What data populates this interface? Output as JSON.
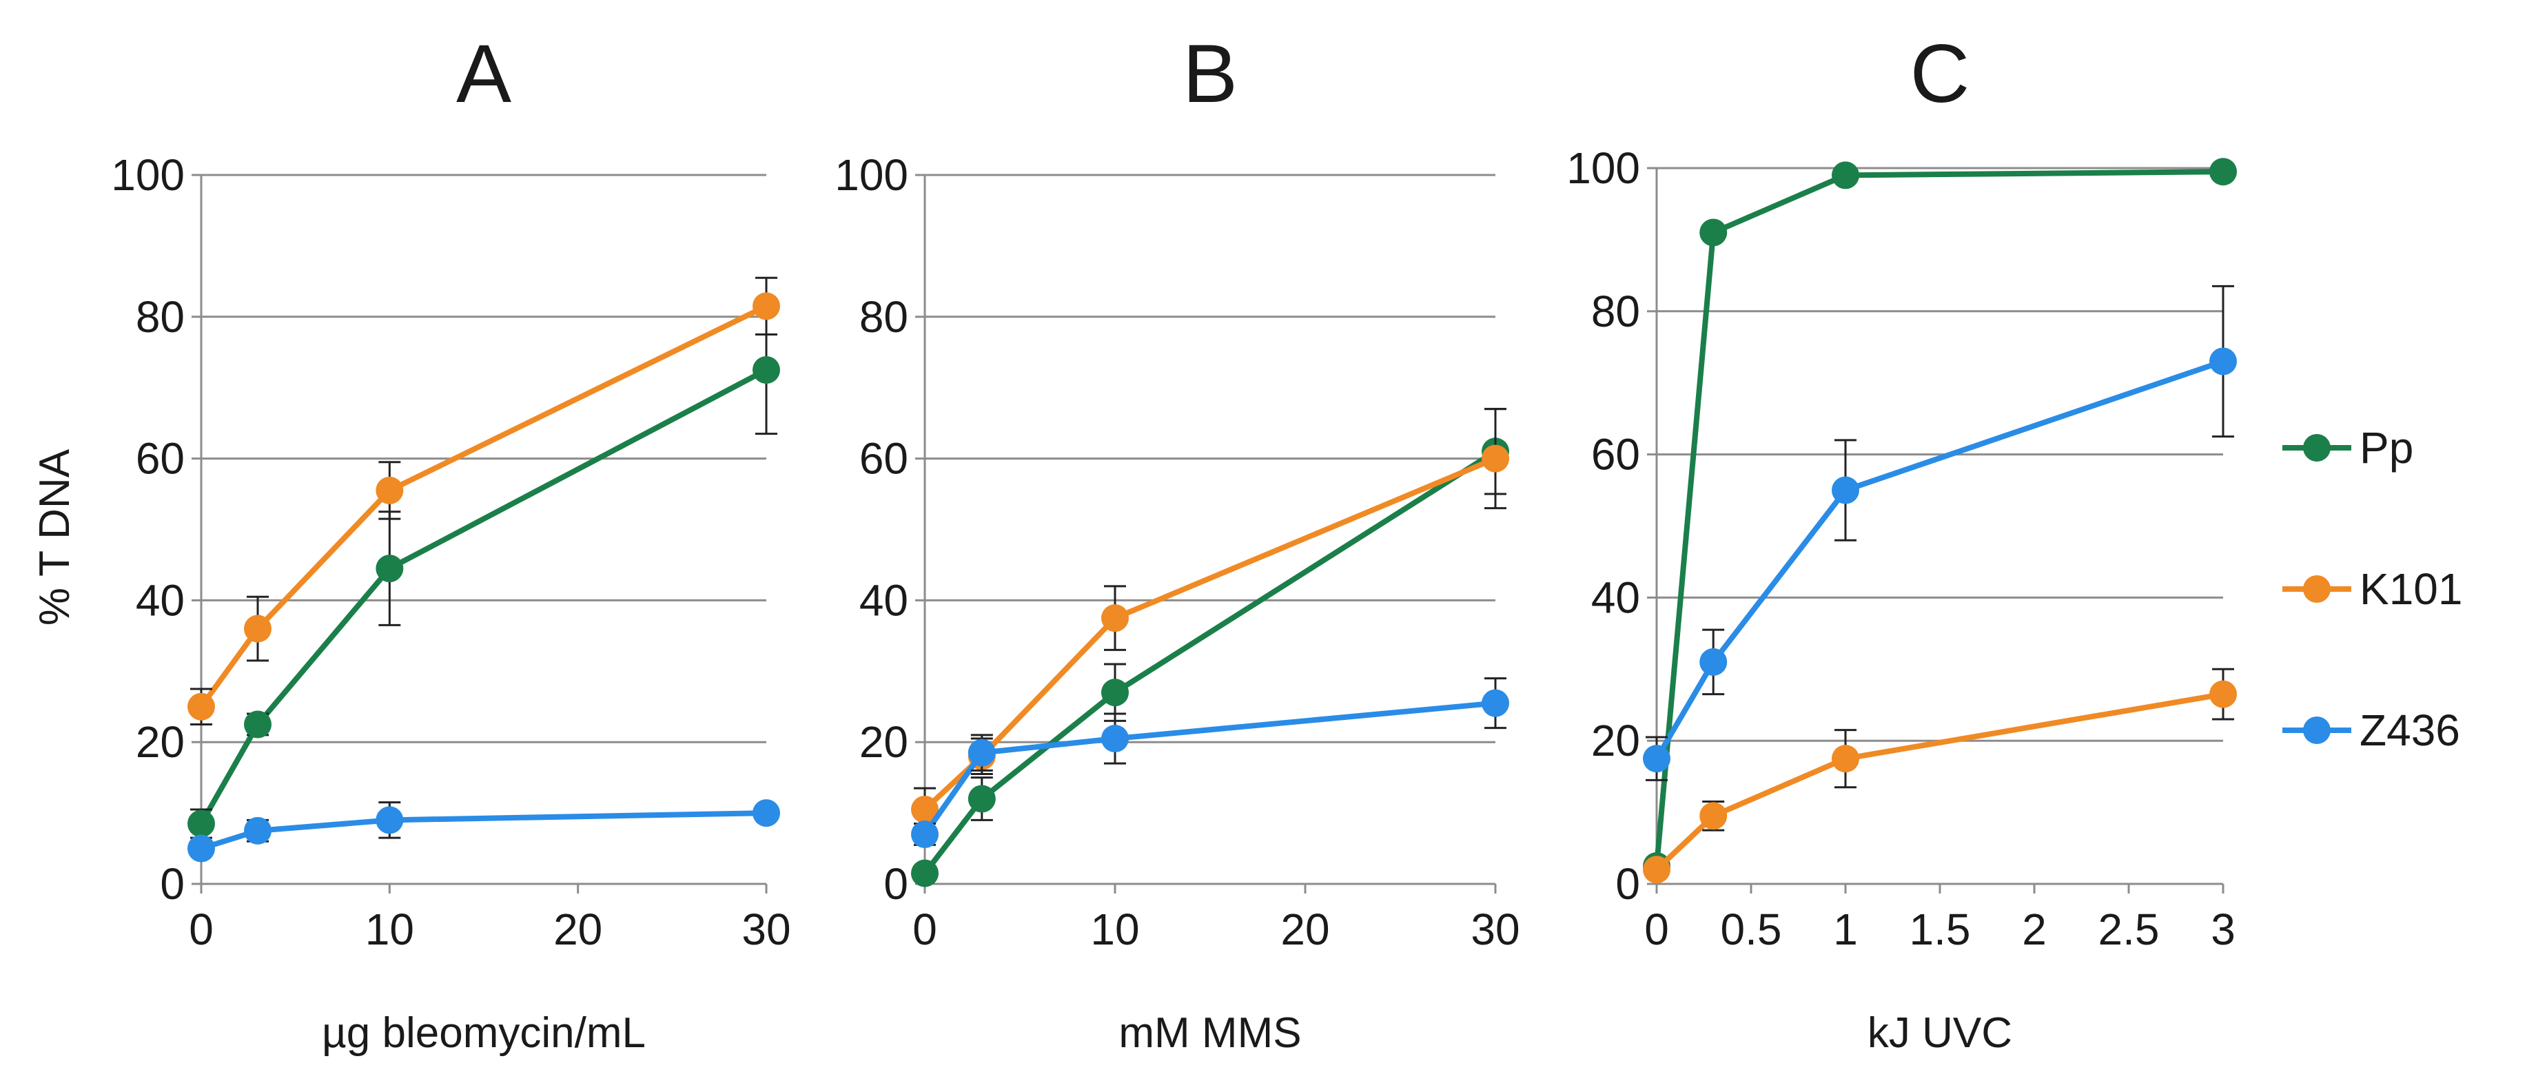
{
  "ylabel": "% T DNA",
  "colors": {
    "Pp": "#1b7f4a",
    "K101": "#f08a24",
    "Z436": "#2a8ce6"
  },
  "legend": [
    {
      "name": "Pp",
      "color": "#1b7f4a"
    },
    {
      "name": "K101",
      "color": "#f08a24"
    },
    {
      "name": "Z436",
      "color": "#2a8ce6"
    }
  ],
  "chart_data": [
    {
      "type": "line",
      "title": "A",
      "xlabel": "µg bleomycin/mL",
      "ylabel": "% T DNA",
      "xlim": [
        0,
        30
      ],
      "ylim": [
        0,
        100
      ],
      "xticks": [
        0,
        10,
        20,
        30
      ],
      "xtick_labels": [
        "0",
        "10",
        "20",
        "30"
      ],
      "yticks": [
        0,
        20,
        40,
        60,
        80,
        100
      ],
      "ytick_labels": [
        "0",
        "20",
        "40",
        "60",
        "80",
        "100"
      ],
      "grid": true,
      "series": [
        {
          "name": "Pp",
          "color": "#1b7f4a",
          "x": [
            0,
            3,
            10,
            30
          ],
          "values": [
            8.5,
            22.5,
            44.5,
            72.5
          ],
          "err": [
            2,
            1.5,
            8,
            9
          ]
        },
        {
          "name": "K101",
          "color": "#f08a24",
          "x": [
            0,
            3,
            10,
            30
          ],
          "values": [
            25,
            36,
            55.5,
            81.5
          ],
          "err": [
            2.5,
            4.5,
            4,
            4
          ]
        },
        {
          "name": "Z436",
          "color": "#2a8ce6",
          "x": [
            0,
            3,
            10,
            30
          ],
          "values": [
            5,
            7.5,
            9,
            10
          ],
          "err": [
            1,
            1.5,
            2.5,
            1
          ]
        }
      ]
    },
    {
      "type": "line",
      "title": "B",
      "xlabel": "mM MMS",
      "ylabel": "% T DNA",
      "xlim": [
        0,
        30
      ],
      "ylim": [
        0,
        100
      ],
      "xticks": [
        0,
        10,
        20,
        30
      ],
      "xtick_labels": [
        "0",
        "10",
        "20",
        "30"
      ],
      "yticks": [
        0,
        20,
        40,
        60,
        80,
        100
      ],
      "ytick_labels": [
        "0",
        "20",
        "40",
        "60",
        "80",
        "100"
      ],
      "grid": true,
      "series": [
        {
          "name": "Pp",
          "color": "#1b7f4a",
          "x": [
            0,
            3,
            10,
            30
          ],
          "values": [
            1.5,
            12,
            27,
            61
          ],
          "err": [
            1,
            3,
            4,
            6
          ]
        },
        {
          "name": "K101",
          "color": "#f08a24",
          "x": [
            0,
            3,
            10,
            30
          ],
          "values": [
            10.5,
            18,
            37.5,
            60
          ],
          "err": [
            3,
            2.5,
            4.5,
            7
          ]
        },
        {
          "name": "Z436",
          "color": "#2a8ce6",
          "x": [
            0,
            3,
            10,
            30
          ],
          "values": [
            7,
            18.5,
            20.5,
            25.5
          ],
          "err": [
            1.5,
            2.5,
            3.5,
            3.5
          ]
        }
      ]
    },
    {
      "type": "line",
      "title": "C",
      "xlabel": "kJ UVC",
      "ylabel": "% T DNA",
      "xlim": [
        0,
        3
      ],
      "ylim": [
        0,
        100
      ],
      "xticks": [
        0,
        0.5,
        1,
        1.5,
        2,
        2.5,
        3
      ],
      "xtick_labels": [
        "0",
        "0.5",
        "1",
        "1.5",
        "2",
        "2.5",
        "3"
      ],
      "yticks": [
        0,
        20,
        40,
        60,
        80,
        100
      ],
      "ytick_labels": [
        "0",
        "20",
        "40",
        "60",
        "80",
        "100"
      ],
      "grid": true,
      "series": [
        {
          "name": "Pp",
          "color": "#1b7f4a",
          "x": [
            0,
            0.3,
            1,
            3
          ],
          "values": [
            2.5,
            91,
            99,
            99.5
          ],
          "err": [
            0.5,
            0.5,
            0.5,
            0.3
          ]
        },
        {
          "name": "K101",
          "color": "#f08a24",
          "x": [
            0,
            0.3,
            1,
            3
          ],
          "values": [
            2,
            9.5,
            17.5,
            26.5
          ],
          "err": [
            0.5,
            2,
            4,
            3.5
          ]
        },
        {
          "name": "Z436",
          "color": "#2a8ce6",
          "x": [
            0,
            0.3,
            1,
            3
          ],
          "values": [
            17.5,
            31,
            55,
            73
          ],
          "err": [
            3,
            4.5,
            7,
            10.5
          ]
        }
      ]
    }
  ]
}
